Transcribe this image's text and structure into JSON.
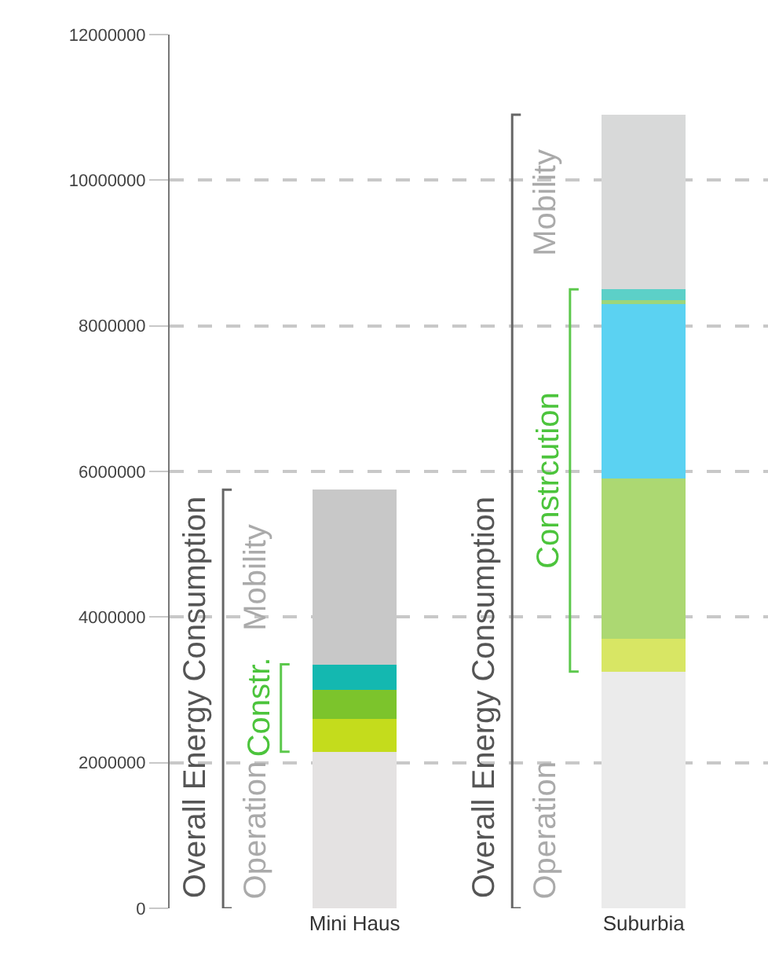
{
  "chart_data": {
    "type": "bar",
    "stacked": true,
    "categories": [
      "Mini Haus",
      "Suburbia"
    ],
    "series": [
      {
        "colors": [
          "#e4e2e2",
          "#ebebeb"
        ],
        "values": [
          2150000,
          3250000
        ]
      },
      {
        "colors": [
          "#c4dc1c",
          "#d8e664"
        ],
        "values": [
          450000,
          450000
        ]
      },
      {
        "colors": [
          "#7cc42c",
          "#acd872"
        ],
        "values": [
          400000,
          2200000
        ]
      },
      {
        "colors": [
          "#5bd2f2",
          "#5bd2f2"
        ],
        "values": [
          0,
          2400000
        ]
      },
      {
        "colors": [
          "#9cd67c",
          "#9cd67c"
        ],
        "values": [
          0,
          50000
        ]
      },
      {
        "colors": [
          "#14b8b0",
          "#5cd0c8"
        ],
        "values": [
          350000,
          150000
        ]
      },
      {
        "colors": [
          "#c8c8c8",
          "#d8d9d9"
        ],
        "values": [
          2400000,
          2400000
        ]
      }
    ],
    "ylim": [
      0,
      12000000
    ],
    "yticks": [
      0,
      2000000,
      4000000,
      6000000,
      8000000,
      10000000,
      12000000
    ],
    "grid": "y",
    "legend": false,
    "annotations": [
      "Overall Energy Consumption",
      "Operation",
      "Constr.",
      "Mobility",
      "Overall Energy Consumption",
      "Operation",
      "Constrcution",
      "Mobility"
    ]
  }
}
